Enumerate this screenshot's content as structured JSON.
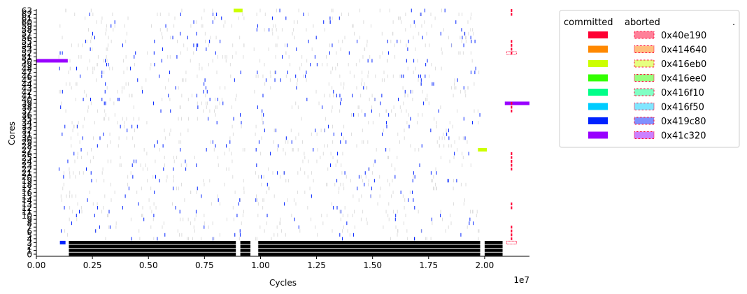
{
  "chart_data": {
    "type": "timeline",
    "xlabel": "Cycles",
    "ylabel": "Cores",
    "x_offset_label": "1e7",
    "xlim": [
      0,
      2.2
    ],
    "ylim": [
      0,
      63
    ],
    "x_ticks": [
      0.0,
      0.25,
      0.5,
      0.75,
      1.0,
      1.25,
      1.5,
      1.75,
      2.0
    ],
    "x_tick_labels": [
      "0.00",
      "0.25",
      "0.50",
      "0.75",
      "1.00",
      "1.25",
      "1.50",
      "1.75",
      "2.00"
    ],
    "y_ticks": [
      0,
      1,
      2,
      3,
      4,
      5,
      6,
      7,
      8,
      9,
      10,
      11,
      12,
      13,
      14,
      15,
      16,
      17,
      18,
      19,
      20,
      21,
      22,
      23,
      24,
      25,
      26,
      27,
      28,
      29,
      30,
      31,
      32,
      33,
      34,
      35,
      36,
      37,
      38,
      39,
      40,
      41,
      42,
      43,
      44,
      45,
      46,
      47,
      48,
      49,
      50,
      51,
      52,
      53,
      54,
      55,
      56,
      57,
      58,
      59,
      60,
      61,
      62,
      63
    ],
    "legend": {
      "placement": "outside-right",
      "column_headers": [
        "committed",
        "aborted",
        "."
      ],
      "entries": [
        {
          "label": "0x40e190",
          "committed_color": "#ff0033",
          "aborted_color": "#ff8099"
        },
        {
          "label": "0x414640",
          "committed_color": "#ff8800",
          "aborted_color": "#ffc080"
        },
        {
          "label": "0x416eb0",
          "committed_color": "#ccff00",
          "aborted_color": "#e6ff80"
        },
        {
          "label": "0x416ee0",
          "committed_color": "#33ff00",
          "aborted_color": "#99ff80"
        },
        {
          "label": "0x416f10",
          "committed_color": "#00ff88",
          "aborted_color": "#80ffc4"
        },
        {
          "label": "0x416f50",
          "committed_color": "#00ccff",
          "aborted_color": "#80e6ff"
        },
        {
          "label": "0x419c80",
          "committed_color": "#0022ff",
          "aborted_color": "#8090ff"
        },
        {
          "label": "0x41c320",
          "committed_color": "#9900ff",
          "aborted_color": "#cc80ff"
        }
      ]
    },
    "highlight_bars": [
      {
        "core": 50,
        "start": 0.0,
        "end": 0.14,
        "color": "#9900ff"
      },
      {
        "core": 63,
        "start": 0.88,
        "end": 0.92,
        "color": "#ccff00"
      },
      {
        "core": 27,
        "start": 1.97,
        "end": 2.01,
        "color": "#ccff00"
      },
      {
        "core": 39,
        "start": 2.09,
        "end": 2.2,
        "color": "#9900ff"
      },
      {
        "core": 3,
        "start": 0.105,
        "end": 0.13,
        "color": "#0022ff"
      }
    ],
    "busy_bands": {
      "cores": [
        0,
        1,
        2,
        3
      ],
      "color": "#000000",
      "segments": [
        [
          0.145,
          0.89
        ],
        [
          0.91,
          0.955
        ],
        [
          0.99,
          1.98
        ],
        [
          2.0,
          2.08
        ]
      ]
    },
    "event_ticks": {
      "committed_color": "#0022ff",
      "aborted_color": "#dddddd",
      "x_range": [
        0.1,
        1.98
      ],
      "gap": [
        0.93,
        0.97
      ]
    },
    "red_cluster": {
      "x": 2.12,
      "cores": [
        4,
        5,
        6,
        7,
        12,
        13,
        22,
        23,
        24,
        25,
        26,
        37,
        38,
        39,
        52,
        53,
        54,
        55,
        62,
        63
      ],
      "wide_cores": [
        3,
        52
      ],
      "color": "#ff0033"
    }
  }
}
